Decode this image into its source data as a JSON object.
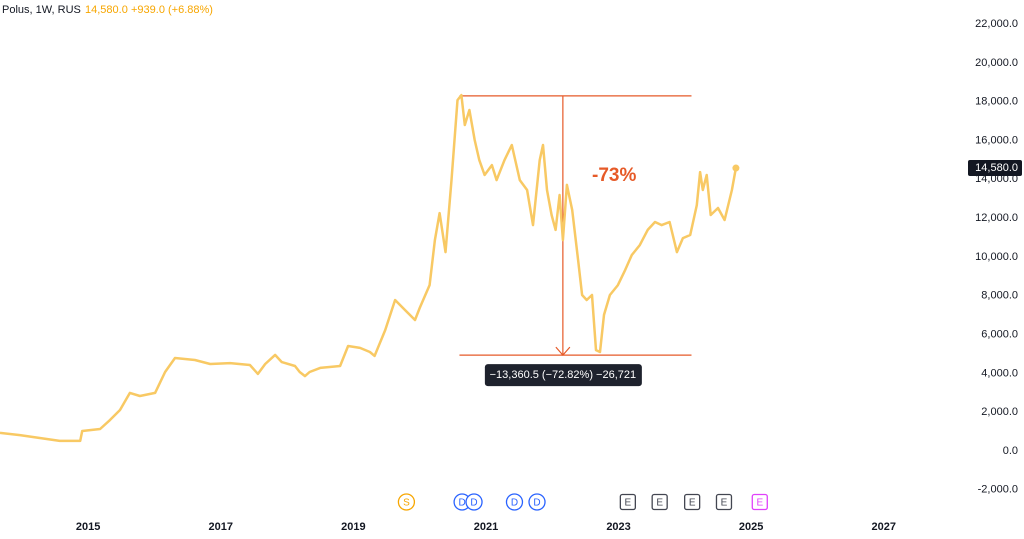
{
  "header": {
    "symbol": "Polus, 1W, RUS",
    "price": "14,580.0",
    "change": "+939.0 (+6.88%)"
  },
  "chart_data": {
    "type": "line",
    "color": "#f8c964",
    "x": [
      2013.67,
      2013.97,
      2014.27,
      2014.57,
      2014.88,
      2014.91,
      2015.18,
      2015.33,
      2015.48,
      2015.63,
      2015.78,
      2016.01,
      2016.16,
      2016.31,
      2016.61,
      2016.84,
      2017.14,
      2017.44,
      2017.56,
      2017.67,
      2017.82,
      2017.92,
      2018.12,
      2018.19,
      2018.27,
      2018.34,
      2018.5,
      2018.8,
      2018.92,
      2019.1,
      2019.25,
      2019.32,
      2019.48,
      2019.63,
      2019.78,
      2019.93,
      2020.0,
      2020.15,
      2020.23,
      2020.3,
      2020.39,
      2020.48,
      2020.57,
      2020.63,
      2020.68,
      2020.75,
      2020.83,
      2020.9,
      2020.98,
      2021.09,
      2021.16,
      2021.28,
      2021.39,
      2021.51,
      2021.62,
      2021.71,
      2021.81,
      2021.86,
      2021.92,
      2021.99,
      2022.05,
      2022.11,
      2022.16,
      2022.22,
      2022.3,
      2022.39,
      2022.45,
      2022.52,
      2022.6,
      2022.66,
      2022.72,
      2022.78,
      2022.87,
      2022.99,
      2023.1,
      2023.2,
      2023.32,
      2023.44,
      2023.55,
      2023.65,
      2023.77,
      2023.88,
      2023.97,
      2024.08,
      2024.18,
      2024.23,
      2024.27,
      2024.33,
      2024.39,
      2024.5,
      2024.6,
      2024.71,
      2024.77
    ],
    "values": [
      930,
      820,
      670,
      520,
      520,
      1030,
      1130,
      1600,
      2110,
      2990,
      2830,
      2990,
      4070,
      4790,
      4690,
      4480,
      4530,
      4430,
      3970,
      4480,
      4950,
      4580,
      4380,
      4070,
      3860,
      4070,
      4280,
      4380,
      5410,
      5310,
      5100,
      4900,
      6230,
      7780,
      7260,
      6750,
      7370,
      8550,
      10870,
      12260,
      10250,
      13960,
      18080,
      18340,
      16800,
      17570,
      16020,
      14990,
      14220,
      14730,
      13960,
      14990,
      15770,
      13960,
      13450,
      11640,
      14990,
      15770,
      13450,
      12160,
      11390,
      13190,
      10870,
      13710,
      12420,
      9840,
      8040,
      7780,
      8040,
      5200,
      5100,
      7010,
      8040,
      8550,
      9330,
      10100,
      10610,
      11390,
      11800,
      11640,
      11800,
      10250,
      10970,
      11130,
      12670,
      14370,
      13450,
      14220,
      12160,
      12520,
      11900,
      13450,
      14580
    ],
    "last_price_label": "14,580.0",
    "xlim": [
      2013.67,
      2028.15
    ],
    "ylim": [
      -3300,
      23240
    ],
    "xticks": [
      2015,
      2017,
      2019,
      2021,
      2023,
      2025,
      2027
    ],
    "yticks": [
      {
        "value": -2000,
        "label": "-2,000.0"
      },
      {
        "value": 0,
        "label": "0.0"
      },
      {
        "value": 2000,
        "label": "2,000.0"
      },
      {
        "value": 4000,
        "label": "4,000.0"
      },
      {
        "value": 6000,
        "label": "6,000.0"
      },
      {
        "value": 8000,
        "label": "8,000.0"
      },
      {
        "value": 10000,
        "label": "10,000.0"
      },
      {
        "value": 12000,
        "label": "12,000.0"
      },
      {
        "value": 14000,
        "label": "14,000.0"
      },
      {
        "value": 16000,
        "label": "16,000.0"
      },
      {
        "value": 18000,
        "label": "18,000.0"
      },
      {
        "value": 20000,
        "label": "20,000.0"
      },
      {
        "value": 22000,
        "label": "22,000.0"
      }
    ],
    "measure": {
      "top": 18300,
      "bottom": 4940,
      "x_start": 2020.6,
      "x_end": 2024.1,
      "x_arrow": 2022.16,
      "color": "#e65a28",
      "annotation": "-73%",
      "label": "−13,360.5 (−72.82%) −26,721"
    },
    "events": [
      {
        "label": "S",
        "x": 2019.8,
        "color": "#f7a600",
        "shape": "circle"
      },
      {
        "label": "D",
        "x": 2020.64,
        "color": "#2962ff",
        "shape": "circle"
      },
      {
        "label": "D",
        "x": 2020.82,
        "color": "#2962ff",
        "shape": "circle"
      },
      {
        "label": "D",
        "x": 2021.43,
        "color": "#2962ff",
        "shape": "circle"
      },
      {
        "label": "D",
        "x": 2021.77,
        "color": "#2962ff",
        "shape": "circle"
      },
      {
        "label": "E",
        "x": 2023.14,
        "color": "#434651",
        "shape": "square"
      },
      {
        "label": "E",
        "x": 2023.62,
        "color": "#434651",
        "shape": "square"
      },
      {
        "label": "E",
        "x": 2024.11,
        "color": "#434651",
        "shape": "square"
      },
      {
        "label": "E",
        "x": 2024.59,
        "color": "#434651",
        "shape": "square"
      },
      {
        "label": "E",
        "x": 2025.13,
        "color": "#e040fb",
        "shape": "square"
      }
    ]
  }
}
